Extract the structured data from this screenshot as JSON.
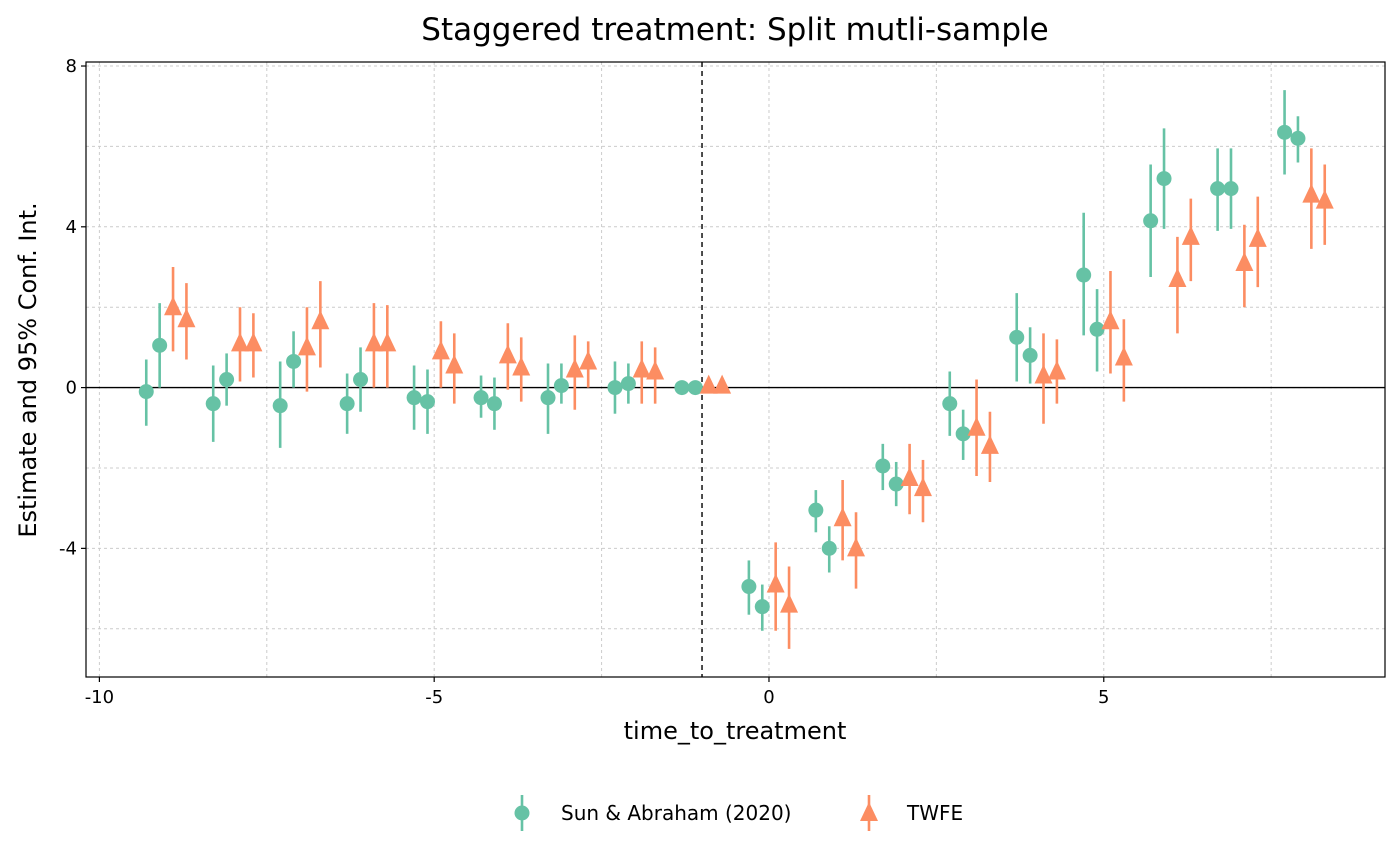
{
  "chart_data": {
    "type": "scatter",
    "title": "Staggered treatment: Split mutli-sample",
    "xlabel": "time_to_treatment",
    "ylabel": "Estimate and 95% Conf. Int.",
    "xlim": [
      -10.2,
      9.2
    ],
    "ylim": [
      -7.2,
      8.1
    ],
    "xticks": [
      -10,
      -5,
      0,
      5
    ],
    "xtick_labels": [
      "-10",
      "-5",
      "0",
      "5"
    ],
    "yticks": [
      -4,
      0,
      4,
      8
    ],
    "ytick_labels": [
      "-4",
      "0",
      "4",
      "8"
    ],
    "reference_vline_x": -1,
    "reference_hline_y": 0,
    "grid": true,
    "legend_position": "bottom",
    "colors": {
      "sa": "#66c2a5",
      "twfe": "#fc8d62"
    },
    "series": [
      {
        "name": "Sun & Abraham (2020)",
        "marker": "circle",
        "points": [
          {
            "x": -9.3,
            "y": -0.1,
            "lo": -0.95,
            "hi": 0.7
          },
          {
            "x": -9.1,
            "y": 1.05,
            "lo": 0.0,
            "hi": 2.1
          },
          {
            "x": -8.3,
            "y": -0.4,
            "lo": -1.35,
            "hi": 0.55
          },
          {
            "x": -8.1,
            "y": 0.2,
            "lo": -0.45,
            "hi": 0.85
          },
          {
            "x": -7.3,
            "y": -0.45,
            "lo": -1.5,
            "hi": 0.65
          },
          {
            "x": -7.1,
            "y": 0.65,
            "lo": 0.0,
            "hi": 1.4
          },
          {
            "x": -6.3,
            "y": -0.4,
            "lo": -1.15,
            "hi": 0.35
          },
          {
            "x": -6.1,
            "y": 0.2,
            "lo": -0.6,
            "hi": 1.0
          },
          {
            "x": -5.3,
            "y": -0.25,
            "lo": -1.05,
            "hi": 0.55
          },
          {
            "x": -5.1,
            "y": -0.35,
            "lo": -1.15,
            "hi": 0.45
          },
          {
            "x": -4.3,
            "y": -0.25,
            "lo": -0.75,
            "hi": 0.3
          },
          {
            "x": -4.1,
            "y": -0.4,
            "lo": -1.05,
            "hi": 0.25
          },
          {
            "x": -3.3,
            "y": -0.25,
            "lo": -1.15,
            "hi": 0.6
          },
          {
            "x": -3.1,
            "y": 0.05,
            "lo": -0.4,
            "hi": 0.6
          },
          {
            "x": -2.3,
            "y": 0.0,
            "lo": -0.65,
            "hi": 0.65
          },
          {
            "x": -2.1,
            "y": 0.1,
            "lo": -0.4,
            "hi": 0.6
          },
          {
            "x": -1.3,
            "y": 0.0,
            "lo": 0.0,
            "hi": 0.0
          },
          {
            "x": -1.1,
            "y": 0.0,
            "lo": 0.0,
            "hi": 0.0
          },
          {
            "x": -0.3,
            "y": -4.95,
            "lo": -5.65,
            "hi": -4.3
          },
          {
            "x": -0.1,
            "y": -5.45,
            "lo": -6.05,
            "hi": -4.9
          },
          {
            "x": 0.7,
            "y": -3.05,
            "lo": -3.6,
            "hi": -2.55
          },
          {
            "x": 0.9,
            "y": -4.0,
            "lo": -4.6,
            "hi": -3.45
          },
          {
            "x": 1.7,
            "y": -1.95,
            "lo": -2.55,
            "hi": -1.4
          },
          {
            "x": 1.9,
            "y": -2.4,
            "lo": -2.95,
            "hi": -1.85
          },
          {
            "x": 2.7,
            "y": -0.4,
            "lo": -1.2,
            "hi": 0.4
          },
          {
            "x": 2.9,
            "y": -1.15,
            "lo": -1.8,
            "hi": -0.55
          },
          {
            "x": 3.7,
            "y": 1.25,
            "lo": 0.15,
            "hi": 2.35
          },
          {
            "x": 3.9,
            "y": 0.8,
            "lo": 0.1,
            "hi": 1.5
          },
          {
            "x": 4.7,
            "y": 2.8,
            "lo": 1.3,
            "hi": 4.35
          },
          {
            "x": 4.9,
            "y": 1.45,
            "lo": 0.4,
            "hi": 2.45
          },
          {
            "x": 5.7,
            "y": 4.15,
            "lo": 2.75,
            "hi": 5.55
          },
          {
            "x": 5.9,
            "y": 5.2,
            "lo": 3.95,
            "hi": 6.45
          },
          {
            "x": 6.7,
            "y": 4.95,
            "lo": 3.9,
            "hi": 5.95
          },
          {
            "x": 6.9,
            "y": 4.95,
            "lo": 3.95,
            "hi": 5.95
          },
          {
            "x": 7.7,
            "y": 6.35,
            "lo": 5.3,
            "hi": 7.4
          },
          {
            "x": 7.9,
            "y": 6.2,
            "lo": 5.6,
            "hi": 6.75
          }
        ]
      },
      {
        "name": "TWFE",
        "marker": "triangle",
        "points": [
          {
            "x": -8.9,
            "y": 2.0,
            "lo": 0.9,
            "hi": 3.0
          },
          {
            "x": -8.7,
            "y": 1.7,
            "lo": 0.7,
            "hi": 2.6
          },
          {
            "x": -7.9,
            "y": 1.1,
            "lo": 0.15,
            "hi": 2.0
          },
          {
            "x": -7.7,
            "y": 1.1,
            "lo": 0.25,
            "hi": 1.85
          },
          {
            "x": -6.9,
            "y": 1.0,
            "lo": -0.1,
            "hi": 2.0
          },
          {
            "x": -6.7,
            "y": 1.65,
            "lo": 0.5,
            "hi": 2.65
          },
          {
            "x": -5.9,
            "y": 1.1,
            "lo": 0.0,
            "hi": 2.1
          },
          {
            "x": -5.7,
            "y": 1.1,
            "lo": 0.0,
            "hi": 2.05
          },
          {
            "x": -4.9,
            "y": 0.9,
            "lo": 0.0,
            "hi": 1.65
          },
          {
            "x": -4.7,
            "y": 0.55,
            "lo": -0.4,
            "hi": 1.35
          },
          {
            "x": -3.9,
            "y": 0.8,
            "lo": -0.05,
            "hi": 1.6
          },
          {
            "x": -3.7,
            "y": 0.5,
            "lo": -0.35,
            "hi": 1.25
          },
          {
            "x": -2.9,
            "y": 0.45,
            "lo": -0.55,
            "hi": 1.3
          },
          {
            "x": -2.7,
            "y": 0.65,
            "lo": 0.0,
            "hi": 1.15
          },
          {
            "x": -1.9,
            "y": 0.45,
            "lo": -0.4,
            "hi": 1.15
          },
          {
            "x": -1.7,
            "y": 0.4,
            "lo": -0.4,
            "hi": 1.0
          },
          {
            "x": -0.9,
            "y": 0.05,
            "lo": 0.05,
            "hi": 0.05
          },
          {
            "x": -0.7,
            "y": 0.05,
            "lo": 0.05,
            "hi": 0.05
          },
          {
            "x": 0.1,
            "y": -4.9,
            "lo": -6.05,
            "hi": -3.85
          },
          {
            "x": 0.3,
            "y": -5.4,
            "lo": -6.5,
            "hi": -4.45
          },
          {
            "x": 1.1,
            "y": -3.25,
            "lo": -4.3,
            "hi": -2.3
          },
          {
            "x": 1.3,
            "y": -4.0,
            "lo": -5.0,
            "hi": -3.1
          },
          {
            "x": 2.1,
            "y": -2.25,
            "lo": -3.15,
            "hi": -1.4
          },
          {
            "x": 2.3,
            "y": -2.5,
            "lo": -3.35,
            "hi": -1.8
          },
          {
            "x": 3.1,
            "y": -1.0,
            "lo": -2.2,
            "hi": 0.2
          },
          {
            "x": 3.3,
            "y": -1.45,
            "lo": -2.35,
            "hi": -0.6
          },
          {
            "x": 4.1,
            "y": 0.3,
            "lo": -0.9,
            "hi": 1.35
          },
          {
            "x": 4.3,
            "y": 0.4,
            "lo": -0.4,
            "hi": 1.2
          },
          {
            "x": 5.1,
            "y": 1.65,
            "lo": 0.35,
            "hi": 2.9
          },
          {
            "x": 5.3,
            "y": 0.75,
            "lo": -0.35,
            "hi": 1.7
          },
          {
            "x": 6.1,
            "y": 2.7,
            "lo": 1.35,
            "hi": 3.75
          },
          {
            "x": 6.3,
            "y": 3.75,
            "lo": 2.65,
            "hi": 4.7
          },
          {
            "x": 7.1,
            "y": 3.1,
            "lo": 2.0,
            "hi": 4.05
          },
          {
            "x": 7.3,
            "y": 3.7,
            "lo": 2.5,
            "hi": 4.75
          },
          {
            "x": 8.1,
            "y": 4.8,
            "lo": 3.45,
            "hi": 5.95
          },
          {
            "x": 8.3,
            "y": 4.65,
            "lo": 3.55,
            "hi": 5.55
          }
        ]
      }
    ]
  }
}
